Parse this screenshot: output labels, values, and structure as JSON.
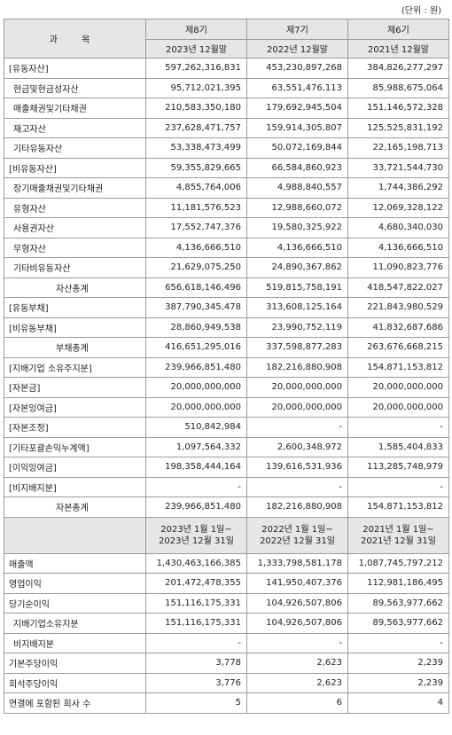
{
  "unit_label": "(단위 : 원)",
  "header": {
    "item_label": "과 목",
    "periods": [
      "제8기",
      "제7기",
      "제6기"
    ],
    "dates": [
      "2023년 12월말",
      "2022년 12월말",
      "2021년 12월말"
    ]
  },
  "balance_rows": [
    {
      "label": "[유동자산]",
      "values": [
        "597,262,316,831",
        "453,230,897,268",
        "384,826,277,297"
      ]
    },
    {
      "label": "현금및현금성자산",
      "values": [
        "95,712,021,395",
        "63,551,476,113",
        "85,988,675,064"
      ]
    },
    {
      "label": "매출채권및기타채권",
      "values": [
        "210,583,350,180",
        "179,692,945,504",
        "151,146,572,328"
      ]
    },
    {
      "label": "재고자산",
      "values": [
        "237,628,471,757",
        "159,914,305,807",
        "125,525,831,192"
      ]
    },
    {
      "label": "기타유동자산",
      "values": [
        "53,338,473,499",
        "50,072,169,844",
        "22,165,198,713"
      ]
    },
    {
      "label": "[비유동자산]",
      "values": [
        "59,355,829,665",
        "66,584,860,923",
        "33,721,544,730"
      ]
    },
    {
      "label": "장기매출채권및기타채권",
      "values": [
        "4,855,764,006",
        "4,988,840,557",
        "1,744,386,292"
      ]
    },
    {
      "label": "유형자산",
      "values": [
        "11,181,576,523",
        "12,988,660,072",
        "12,069,328,122"
      ]
    },
    {
      "label": "사용권자산",
      "values": [
        "17,552,747,376",
        "19,580,325,922",
        "4,680,340,030"
      ]
    },
    {
      "label": "무형자산",
      "values": [
        "4,136,666,510",
        "4,136,666,510",
        "4,136,666,510"
      ]
    },
    {
      "label": "기타비유동자산",
      "values": [
        "21,629,075,250",
        "24,890,367,862",
        "11,090,823,776"
      ]
    },
    {
      "label": "자산총계",
      "values": [
        "656,618,146,496",
        "519,815,758,191",
        "418,547,822,027"
      ]
    },
    {
      "label": "[유동부채]",
      "values": [
        "387,790,345,478",
        "313,608,125,164",
        "221,843,980,529"
      ]
    },
    {
      "label": "[비유동부채]",
      "values": [
        "28,860,949,538",
        "23,990,752,119",
        "41,832,687,686"
      ]
    },
    {
      "label": "부채총계",
      "values": [
        "416,651,295,016",
        "337,598,877,283",
        "263,676,668,215"
      ]
    },
    {
      "label": "[지배기업 소유주지분]",
      "values": [
        "239,966,851,480",
        "182,216,880,908",
        "154,871,153,812"
      ]
    },
    {
      "label": "[자본금]",
      "values": [
        "20,000,000,000",
        "20,000,000,000",
        "20,000,000,000"
      ]
    },
    {
      "label": "[자본잉여금]",
      "values": [
        "20,000,000,000",
        "20,000,000,000",
        "20,000,000,000"
      ]
    },
    {
      "label": "[자본조정]",
      "values": [
        "510,842,984",
        "-",
        "-"
      ]
    },
    {
      "label": "[기타포괄손익누계액]",
      "values": [
        "1,097,564,332",
        "2,600,348,972",
        "1,585,404,833"
      ]
    },
    {
      "label": "[이익잉여금]",
      "values": [
        "198,358,444,164",
        "139,616,531,936",
        "113,285,748,979"
      ]
    },
    {
      "label": "[비지배지분]",
      "values": [
        "-",
        "-",
        "-"
      ]
    },
    {
      "label": "자본총계",
      "values": [
        "239,966,851,480",
        "182,216,880,908",
        "154,871,153,812"
      ]
    }
  ],
  "period_header": {
    "ranges": [
      [
        "2023년 1월 1일~",
        "2023년 12월 31일"
      ],
      [
        "2022년 1월 1일~",
        "2022년 12월 31일"
      ],
      [
        "2021년 1월 1일~",
        "2021년 12월 31일"
      ]
    ]
  },
  "income_rows": [
    {
      "label": "매출액",
      "values": [
        "1,430,463,166,385",
        "1,333,798,581,178",
        "1,087,745,797,212"
      ]
    },
    {
      "label": "영업이익",
      "values": [
        "201,472,478,355",
        "141,950,407,376",
        "112,981,186,495"
      ]
    },
    {
      "label": "당기순이익",
      "values": [
        "151,116,175,331",
        "104,926,507,806",
        "89,563,977,662"
      ]
    },
    {
      "label": "지배기업소유지분",
      "values": [
        "151,116,175,331",
        "104,926,507,806",
        "89,563,977,662"
      ]
    },
    {
      "label": "비지배지분",
      "values": [
        "-",
        "-",
        "-"
      ]
    },
    {
      "label": "기본주당이익",
      "values": [
        "3,778",
        "2,623",
        "2,239"
      ]
    },
    {
      "label": "희석주당이익",
      "values": [
        "3,776",
        "2,623",
        "2,239"
      ]
    },
    {
      "label": "연결에 포함된 회사 수",
      "values": [
        "5",
        "6",
        "4"
      ]
    }
  ]
}
